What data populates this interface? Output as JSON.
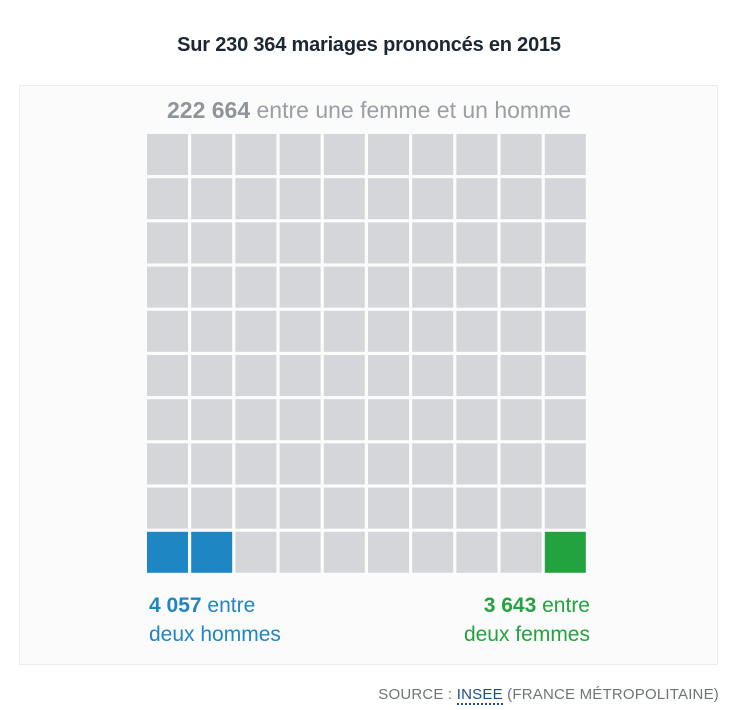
{
  "title": "Sur 230 364 mariages prononcés en 2015",
  "top": {
    "number": "222 664",
    "text": "entre une femme et un homme"
  },
  "men": {
    "number": "4 057",
    "line1": "entre",
    "line2": "deux hommes"
  },
  "women": {
    "number": "3 643",
    "line1": "entre",
    "line2": "deux femmes"
  },
  "source": {
    "prefix": "SOURCE :",
    "link": "INSEE",
    "suffix": "(FRANCE MÉTROPOLITAINE)"
  },
  "colors": {
    "grey": "#d4d6d9",
    "men": "#1f86c4",
    "women": "#23a33f"
  },
  "chart_data": {
    "type": "waffle",
    "title": "Sur 230 364 mariages prononcés en 2015",
    "rows": 10,
    "cols": 10,
    "total": 230364,
    "categories": [
      "entre une femme et un homme",
      "entre deux hommes",
      "entre deux femmes"
    ],
    "values": [
      222664,
      4057,
      3643
    ],
    "cells": [
      97,
      2,
      1
    ],
    "highlight_cells": {
      "men": [
        [
          9,
          0
        ],
        [
          9,
          1
        ]
      ],
      "women": [
        [
          9,
          9
        ]
      ]
    }
  }
}
